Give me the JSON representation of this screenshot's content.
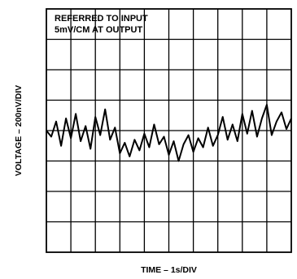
{
  "chart_data": {
    "type": "line",
    "title": "",
    "annotations": [
      "REFERRED TO INPUT",
      "5mV/CM AT OUTPUT"
    ],
    "xlabel": "TIME – 1s/DIV",
    "ylabel": "VOLTAGE – 200nV/DIV",
    "x_divisions": 10,
    "y_divisions": 8,
    "grid": true,
    "x_unit": "s",
    "y_unit": "nV",
    "xlim": [
      0,
      10
    ],
    "ylim": [
      -800,
      800
    ],
    "series": [
      {
        "name": "",
        "x": [
          0,
          0.2,
          0.4,
          0.6,
          0.8,
          1.0,
          1.2,
          1.4,
          1.6,
          1.8,
          2.0,
          2.2,
          2.4,
          2.6,
          2.8,
          3.0,
          3.2,
          3.4,
          3.6,
          3.8,
          4.0,
          4.2,
          4.4,
          4.6,
          4.8,
          5.0,
          5.2,
          5.4,
          5.6,
          5.8,
          6.0,
          6.2,
          6.4,
          6.6,
          6.8,
          7.0,
          7.2,
          7.4,
          7.6,
          7.8,
          8.0,
          8.2,
          8.4,
          8.6,
          8.8,
          9.0,
          9.2,
          9.4,
          9.6,
          9.8,
          10.0
        ],
        "values": [
          0,
          -40,
          60,
          -100,
          80,
          -50,
          110,
          -70,
          30,
          -120,
          90,
          -30,
          140,
          -60,
          20,
          -150,
          -80,
          -170,
          -60,
          -130,
          -20,
          -110,
          40,
          -90,
          -40,
          -160,
          -70,
          -200,
          -90,
          -30,
          -140,
          -50,
          -110,
          20,
          -100,
          -30,
          90,
          -60,
          40,
          -70,
          110,
          -20,
          130,
          -40,
          80,
          170,
          -30,
          60,
          120,
          10,
          80
        ]
      }
    ]
  }
}
